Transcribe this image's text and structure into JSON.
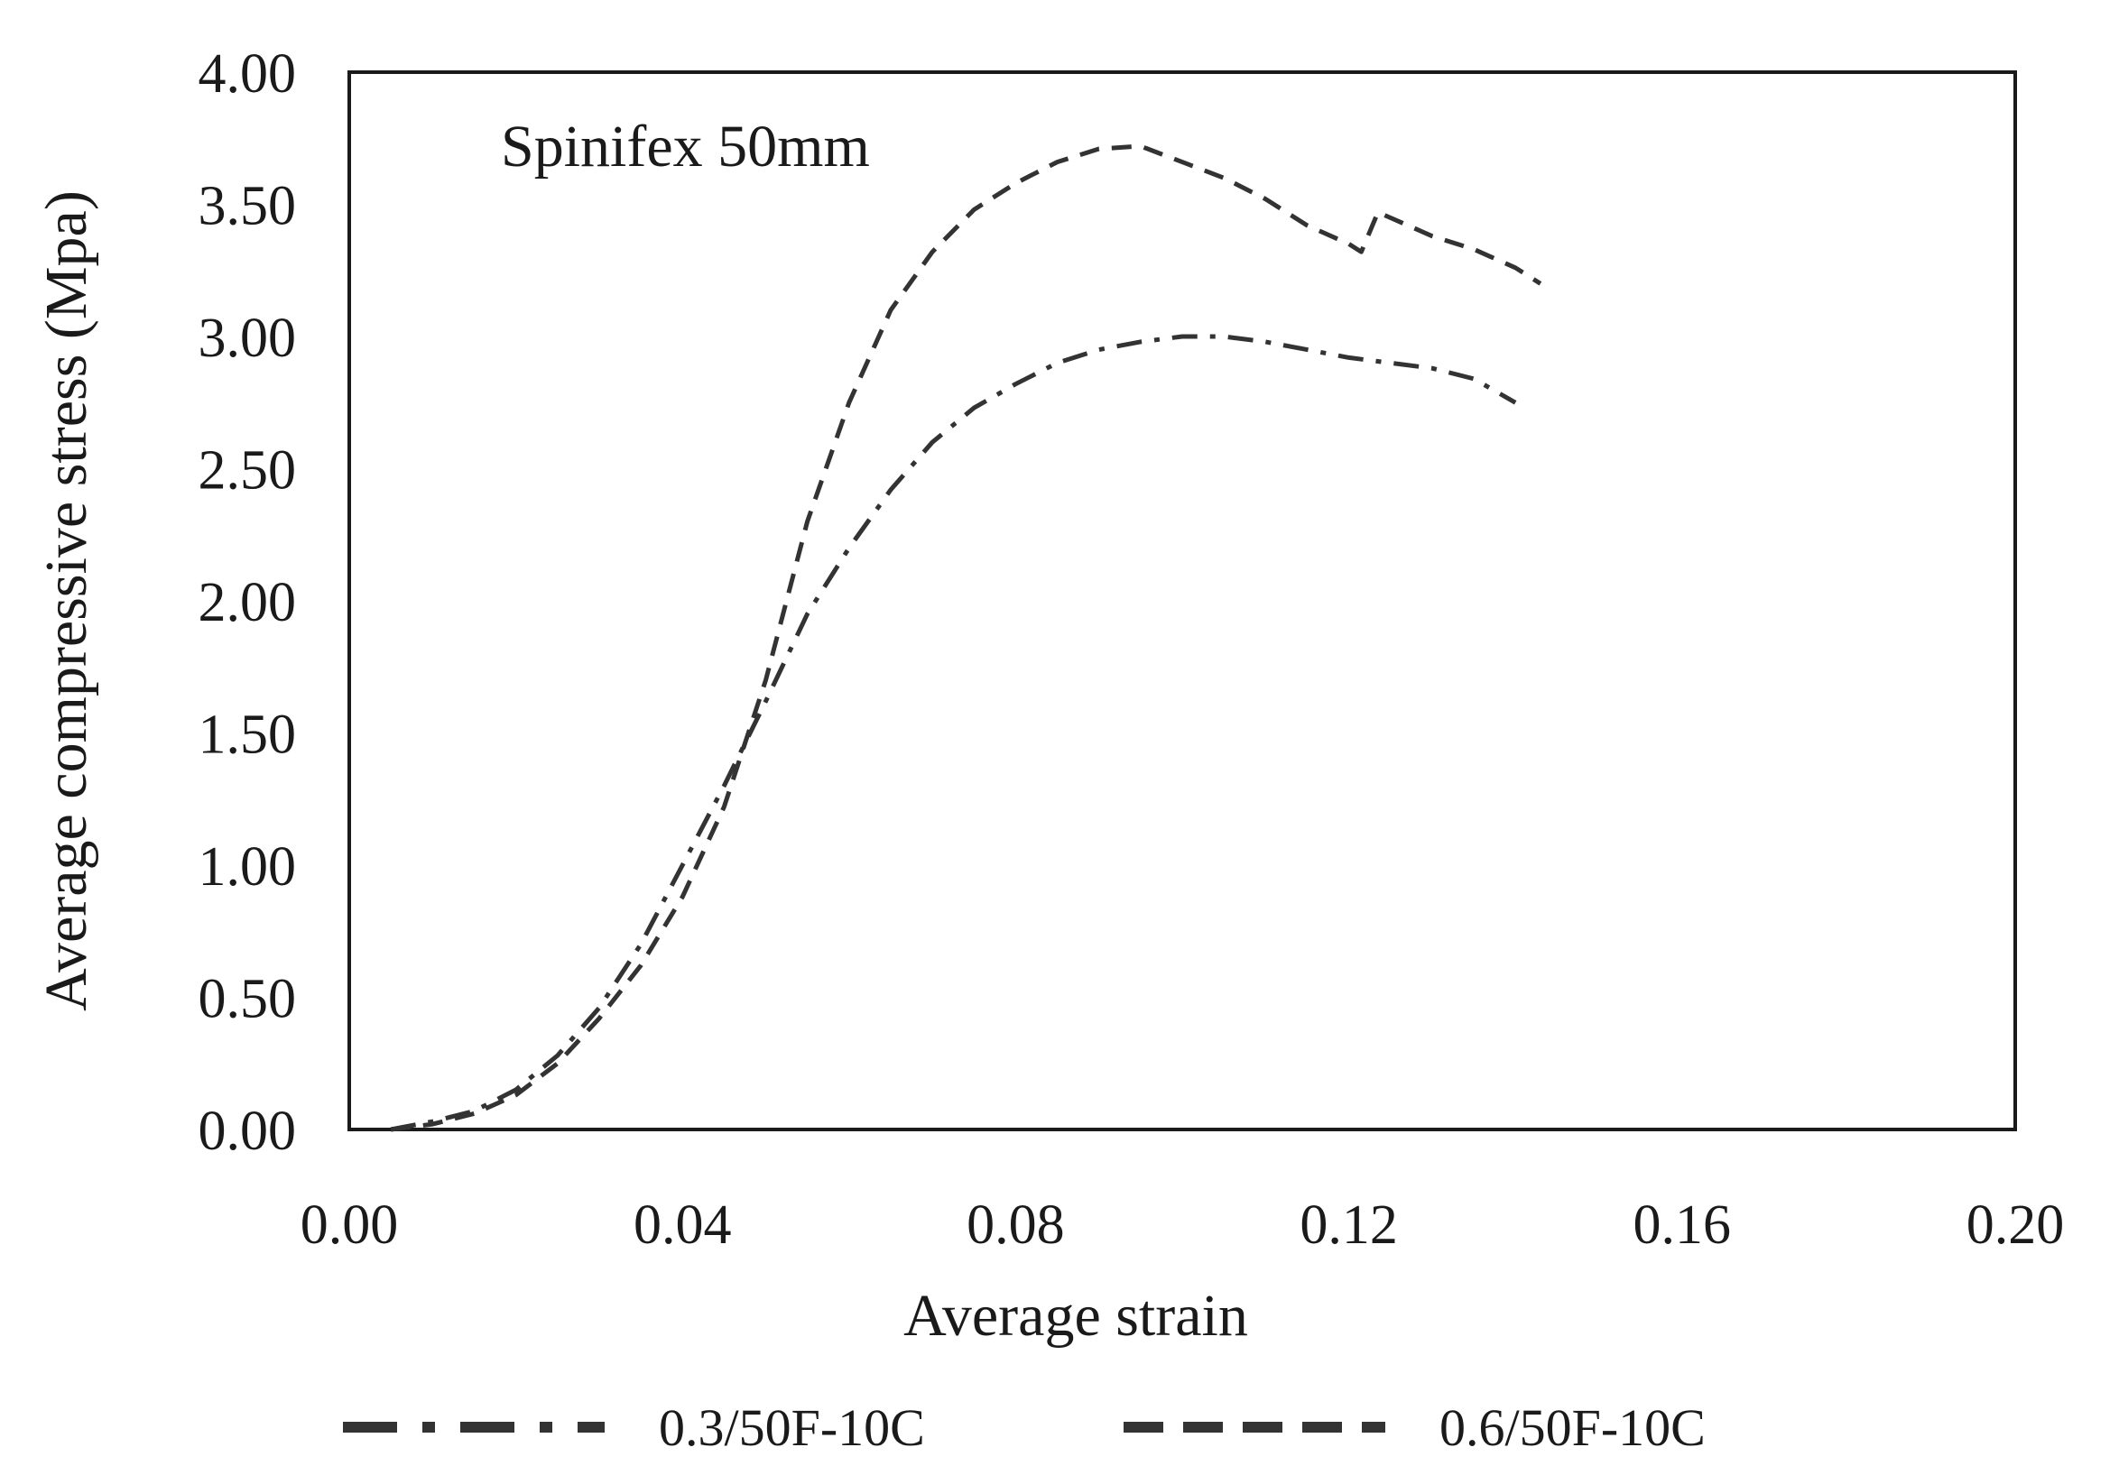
{
  "chart_data": {
    "type": "line",
    "annotation": "Spinifex  50mm",
    "xlabel": "Average  strain",
    "ylabel": "Average  compressive stress (Mpa)",
    "xlim": [
      0,
      0.2
    ],
    "ylim": [
      0,
      4
    ],
    "x_ticks": [
      "0.00",
      "0.04",
      "0.08",
      "0.12",
      "0.16",
      "0.20"
    ],
    "y_ticks": [
      "0.00",
      "0.50",
      "1.00",
      "1.50",
      "2.00",
      "2.50",
      "3.00",
      "3.50",
      "4.00"
    ],
    "grid": false,
    "legend_position": "bottom",
    "series": [
      {
        "name": "0.3/50F-10C",
        "style": "dash-dot",
        "color": "#333333",
        "points": [
          [
            0.005,
            0.0
          ],
          [
            0.01,
            0.03
          ],
          [
            0.015,
            0.07
          ],
          [
            0.02,
            0.15
          ],
          [
            0.025,
            0.28
          ],
          [
            0.03,
            0.46
          ],
          [
            0.035,
            0.7
          ],
          [
            0.04,
            1.0
          ],
          [
            0.045,
            1.3
          ],
          [
            0.05,
            1.62
          ],
          [
            0.055,
            1.95
          ],
          [
            0.06,
            2.2
          ],
          [
            0.065,
            2.42
          ],
          [
            0.07,
            2.6
          ],
          [
            0.075,
            2.73
          ],
          [
            0.08,
            2.82
          ],
          [
            0.085,
            2.9
          ],
          [
            0.09,
            2.95
          ],
          [
            0.095,
            2.98
          ],
          [
            0.1,
            3.0
          ],
          [
            0.105,
            3.0
          ],
          [
            0.11,
            2.98
          ],
          [
            0.115,
            2.95
          ],
          [
            0.12,
            2.92
          ],
          [
            0.125,
            2.9
          ],
          [
            0.13,
            2.88
          ],
          [
            0.135,
            2.84
          ],
          [
            0.14,
            2.75
          ]
        ]
      },
      {
        "name": "0.6/50F-10C",
        "style": "dash",
        "color": "#333333",
        "points": [
          [
            0.005,
            0.0
          ],
          [
            0.01,
            0.02
          ],
          [
            0.015,
            0.06
          ],
          [
            0.02,
            0.13
          ],
          [
            0.025,
            0.25
          ],
          [
            0.03,
            0.42
          ],
          [
            0.035,
            0.62
          ],
          [
            0.04,
            0.88
          ],
          [
            0.045,
            1.22
          ],
          [
            0.05,
            1.7
          ],
          [
            0.055,
            2.3
          ],
          [
            0.06,
            2.75
          ],
          [
            0.065,
            3.1
          ],
          [
            0.07,
            3.32
          ],
          [
            0.075,
            3.48
          ],
          [
            0.08,
            3.58
          ],
          [
            0.085,
            3.66
          ],
          [
            0.09,
            3.71
          ],
          [
            0.095,
            3.72
          ],
          [
            0.1,
            3.66
          ],
          [
            0.105,
            3.6
          ],
          [
            0.11,
            3.52
          ],
          [
            0.115,
            3.42
          ],
          [
            0.12,
            3.35
          ],
          [
            0.1215,
            3.32
          ],
          [
            0.1235,
            3.47
          ],
          [
            0.13,
            3.38
          ],
          [
            0.135,
            3.33
          ],
          [
            0.14,
            3.26
          ],
          [
            0.143,
            3.2
          ]
        ]
      }
    ]
  }
}
